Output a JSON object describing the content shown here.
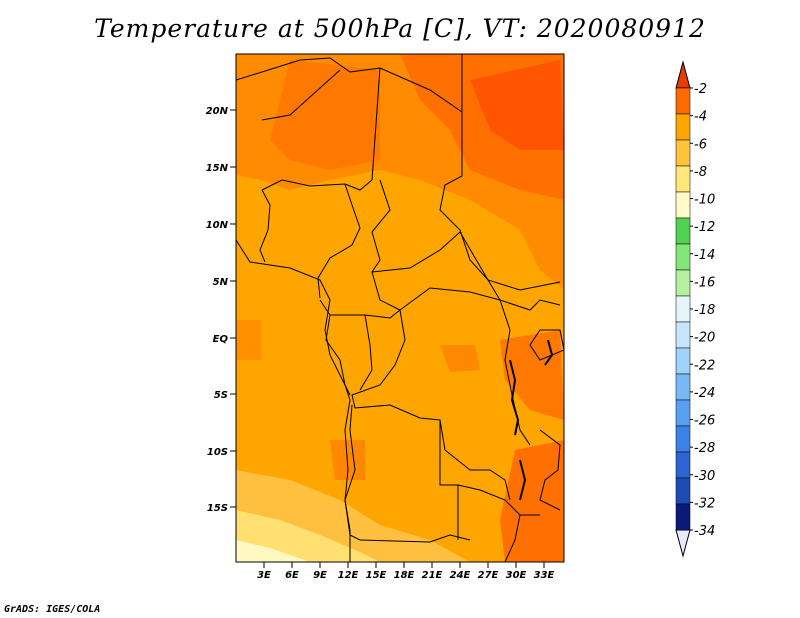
{
  "title": "Temperature at 500hPa [C], VT: 2020080912",
  "credit": "GrADS: IGES/COLA",
  "map": {
    "lat_labels": [
      "20N",
      "15N",
      "10N",
      "5N",
      "EQ",
      "5S",
      "10S",
      "15S"
    ],
    "lon_labels": [
      "3E",
      "6E",
      "9E",
      "12E",
      "15E",
      "18E",
      "21E",
      "24E",
      "27E",
      "30E",
      "33E"
    ],
    "field": "temperature",
    "level": "500hPa",
    "units": "C",
    "valid_time": "2020080912"
  },
  "colorbar": {
    "levels": [
      "-2",
      "-4",
      "-6",
      "-8",
      "-10",
      "-12",
      "-14",
      "-16",
      "-18",
      "-20",
      "-22",
      "-24",
      "-26",
      "-28",
      "-30",
      "-32",
      "-34"
    ],
    "colors": [
      "#e8e8ff",
      "#0a1a78",
      "#1e4bb4",
      "#2d64d2",
      "#3c82e6",
      "#5aa0f0",
      "#78b9f5",
      "#a0d2fa",
      "#c8e6fa",
      "#e6f5fa",
      "#b4f0a0",
      "#82e678",
      "#50d250",
      "#fffac8",
      "#ffe678",
      "#ffc33c",
      "#ffa500",
      "#ff6a00",
      "#e63c00"
    ]
  },
  "colors": {
    "warm_dark": "#ff4f00",
    "warm_mid": "#ff7800",
    "orange": "#ffa500",
    "orange_light": "#ffc040",
    "yellow": "#ffe070",
    "yellow_pale": "#fff8c0"
  }
}
